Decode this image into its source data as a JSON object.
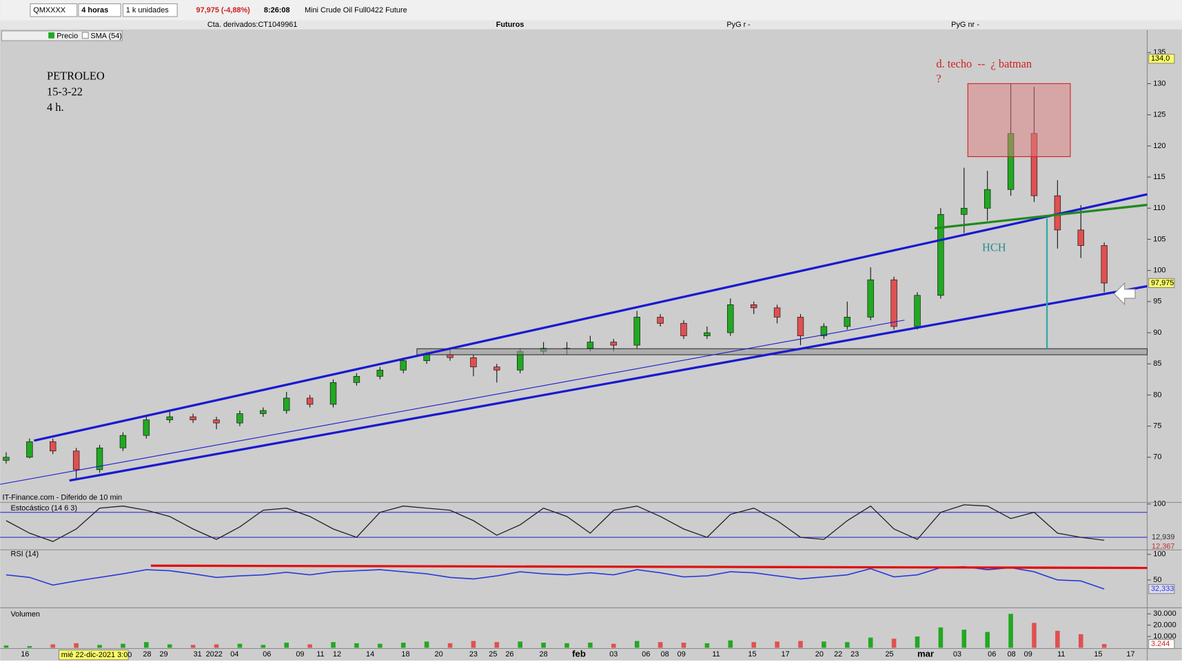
{
  "toolbar": {
    "symbol": "QMXXXX",
    "period": "4 horas",
    "units": "1 k unidades",
    "change": "97,975 (-4,88%)",
    "time": "8:26:08",
    "instrument": "Mini Crude Oil Full0422 Future"
  },
  "account_bar": {
    "account": "Cta. derivados:CT1049961",
    "market": "Futuros",
    "pyg_r": "PyG r",
    "pyg_r_value": "-",
    "pyg_nr": "PyG nr",
    "pyg_nr_value": "-"
  },
  "legend": [
    "Precio",
    "SMA (54)"
  ],
  "annotations": {
    "title": "PETROLEO",
    "date": "15-3-22",
    "timeframe": "4 h.",
    "pattern": "d. techo  --  ¿ batman",
    "question": "?",
    "hch": "HCH"
  },
  "source": "IT-Finance.com - Diferido de 10 min",
  "price_chart": {
    "type": "candlestick",
    "up_color": "#22a822",
    "down_color": "#e05050",
    "ohlc": [
      [
        69.5,
        70.8,
        69,
        70
      ],
      [
        70,
        73,
        69.8,
        72.5
      ],
      [
        72.5,
        73,
        70.5,
        71
      ],
      [
        71,
        71.5,
        66.5,
        68
      ],
      [
        68,
        72,
        67.5,
        71.5
      ],
      [
        71.5,
        74,
        71,
        73.5
      ],
      [
        73.5,
        76.5,
        73,
        76
      ],
      [
        76,
        77.5,
        75.5,
        76.5
      ],
      [
        76.5,
        77,
        75.5,
        76
      ],
      [
        76,
        76.5,
        74.5,
        75.5
      ],
      [
        75.5,
        77.5,
        75,
        77
      ],
      [
        77,
        78,
        76.5,
        77.5
      ],
      [
        77.5,
        80.5,
        77,
        79.5
      ],
      [
        79.5,
        80,
        78,
        78.5
      ],
      [
        78.5,
        82.5,
        78,
        82
      ],
      [
        82,
        83.5,
        81.5,
        83
      ],
      [
        83,
        84.5,
        82.5,
        84
      ],
      [
        84,
        86,
        83.5,
        85.5
      ],
      [
        85.5,
        87,
        85,
        86.5
      ],
      [
        86.5,
        87.5,
        85.5,
        86
      ],
      [
        86,
        86.5,
        83,
        84.5
      ],
      [
        84.5,
        85,
        82,
        84
      ],
      [
        84,
        87.5,
        83.5,
        87
      ],
      [
        87,
        88.5,
        86.5,
        87.5
      ],
      [
        87.5,
        88.5,
        86.5,
        87.5
      ],
      [
        87.5,
        89.5,
        87,
        88.5
      ],
      [
        88.5,
        89,
        87,
        88
      ],
      [
        88,
        93.5,
        87.5,
        92.5
      ],
      [
        92.5,
        93,
        91,
        91.5
      ],
      [
        91.5,
        92,
        89,
        89.5
      ],
      [
        89.5,
        91,
        89,
        90
      ],
      [
        90,
        95.5,
        89.5,
        94.5
      ],
      [
        94.5,
        95,
        93,
        94
      ],
      [
        94,
        94.5,
        91.5,
        92.5
      ],
      [
        92.5,
        93,
        88,
        89.5
      ],
      [
        89.5,
        91.5,
        89,
        91
      ],
      [
        91,
        95,
        90.5,
        92.5
      ],
      [
        92.5,
        100.5,
        92,
        98.5
      ],
      [
        98.5,
        99,
        90.5,
        91
      ],
      [
        91,
        96.5,
        90.5,
        96
      ],
      [
        96,
        110,
        95.5,
        109
      ],
      [
        109,
        116.5,
        106,
        110
      ],
      [
        110,
        116,
        108,
        113
      ],
      [
        113,
        130,
        112,
        122
      ],
      [
        122,
        129.5,
        111,
        112
      ],
      [
        112,
        114.5,
        103.5,
        106.5
      ],
      [
        106.5,
        110.5,
        102,
        104
      ],
      [
        104,
        104.5,
        96.5,
        97.975
      ]
    ],
    "ylim": [
      64.2,
      138.6
    ],
    "yticks": [
      70,
      75,
      80,
      85,
      90,
      95,
      100,
      105,
      110,
      115,
      120,
      125,
      130,
      135
    ],
    "last_price": {
      "value": 97.975,
      "label": "97,975"
    },
    "top_price": {
      "value": 134,
      "label": "134,0"
    }
  },
  "x_axis": {
    "labels": [
      "16",
      "28",
      "29",
      "31",
      "2022",
      "04",
      "06",
      "09",
      "11",
      "12",
      "14",
      "18",
      "20",
      "23",
      "25",
      "26",
      "28",
      "feb",
      "03",
      "06",
      "08",
      "09",
      "11",
      "15",
      "17",
      "20",
      "22",
      "23",
      "25",
      "mar",
      "03",
      "06",
      "08",
      "09",
      "11",
      "15",
      "17"
    ],
    "cursor_label": "mié 22-dic-2021 3:00"
  },
  "stochastic": {
    "type": "line",
    "title": "Estocástico (14 6 3)",
    "color": "#202020",
    "values": [
      60,
      30,
      10,
      40,
      90,
      95,
      85,
      70,
      40,
      15,
      45,
      85,
      90,
      70,
      40,
      20,
      80,
      95,
      90,
      85,
      60,
      25,
      50,
      90,
      70,
      30,
      85,
      95,
      70,
      40,
      20,
      75,
      90,
      60,
      20,
      15,
      60,
      95,
      40,
      15,
      80,
      98,
      95,
      65,
      80,
      30,
      20,
      12.939
    ],
    "ylim": [
      -10,
      102
    ],
    "yticks": [
      100
    ],
    "levels": [
      80,
      20
    ],
    "last_values": [
      {
        "value": 12.939,
        "label": "12,939"
      },
      {
        "value": 12.367,
        "label": "12,367"
      }
    ]
  },
  "rsi": {
    "type": "line",
    "title": "RSI (14)",
    "color": "#2a3ad8",
    "values": [
      60,
      55,
      40,
      48,
      55,
      62,
      70,
      68,
      62,
      55,
      58,
      60,
      65,
      60,
      66,
      68,
      70,
      66,
      62,
      55,
      52,
      58,
      66,
      62,
      60,
      64,
      60,
      70,
      64,
      56,
      58,
      66,
      64,
      58,
      52,
      56,
      60,
      72,
      56,
      60,
      74,
      76,
      70,
      74,
      66,
      50,
      48,
      32.333
    ],
    "ylim": [
      -4.4,
      108.8
    ],
    "yticks": [
      100,
      50
    ],
    "last_value": {
      "value": 32.333,
      "label": "32,333"
    }
  },
  "volume": {
    "type": "bar",
    "title": "Volumen",
    "values": [
      2000,
      1500,
      3000,
      4000,
      2500,
      3500,
      5000,
      3000,
      2500,
      3000,
      3500,
      2500,
      4500,
      3000,
      5000,
      4000,
      3500,
      4500,
      5500,
      4000,
      6000,
      5000,
      5500,
      4500,
      4000,
      4500,
      3500,
      6000,
      5000,
      4500,
      4000,
      6500,
      5000,
      5500,
      6000,
      5500,
      5000,
      9000,
      8000,
      10000,
      18000,
      16000,
      14000,
      30000,
      22000,
      15000,
      12000,
      3244
    ],
    "ylim": [
      0,
      34667
    ],
    "yticks": [
      {
        "value": 30000,
        "label": "30.000"
      },
      {
        "value": 20000,
        "label": "20.000"
      },
      {
        "value": 10000,
        "label": "10.000"
      }
    ],
    "last_value": {
      "value": 3244,
      "label": "3.244"
    }
  }
}
